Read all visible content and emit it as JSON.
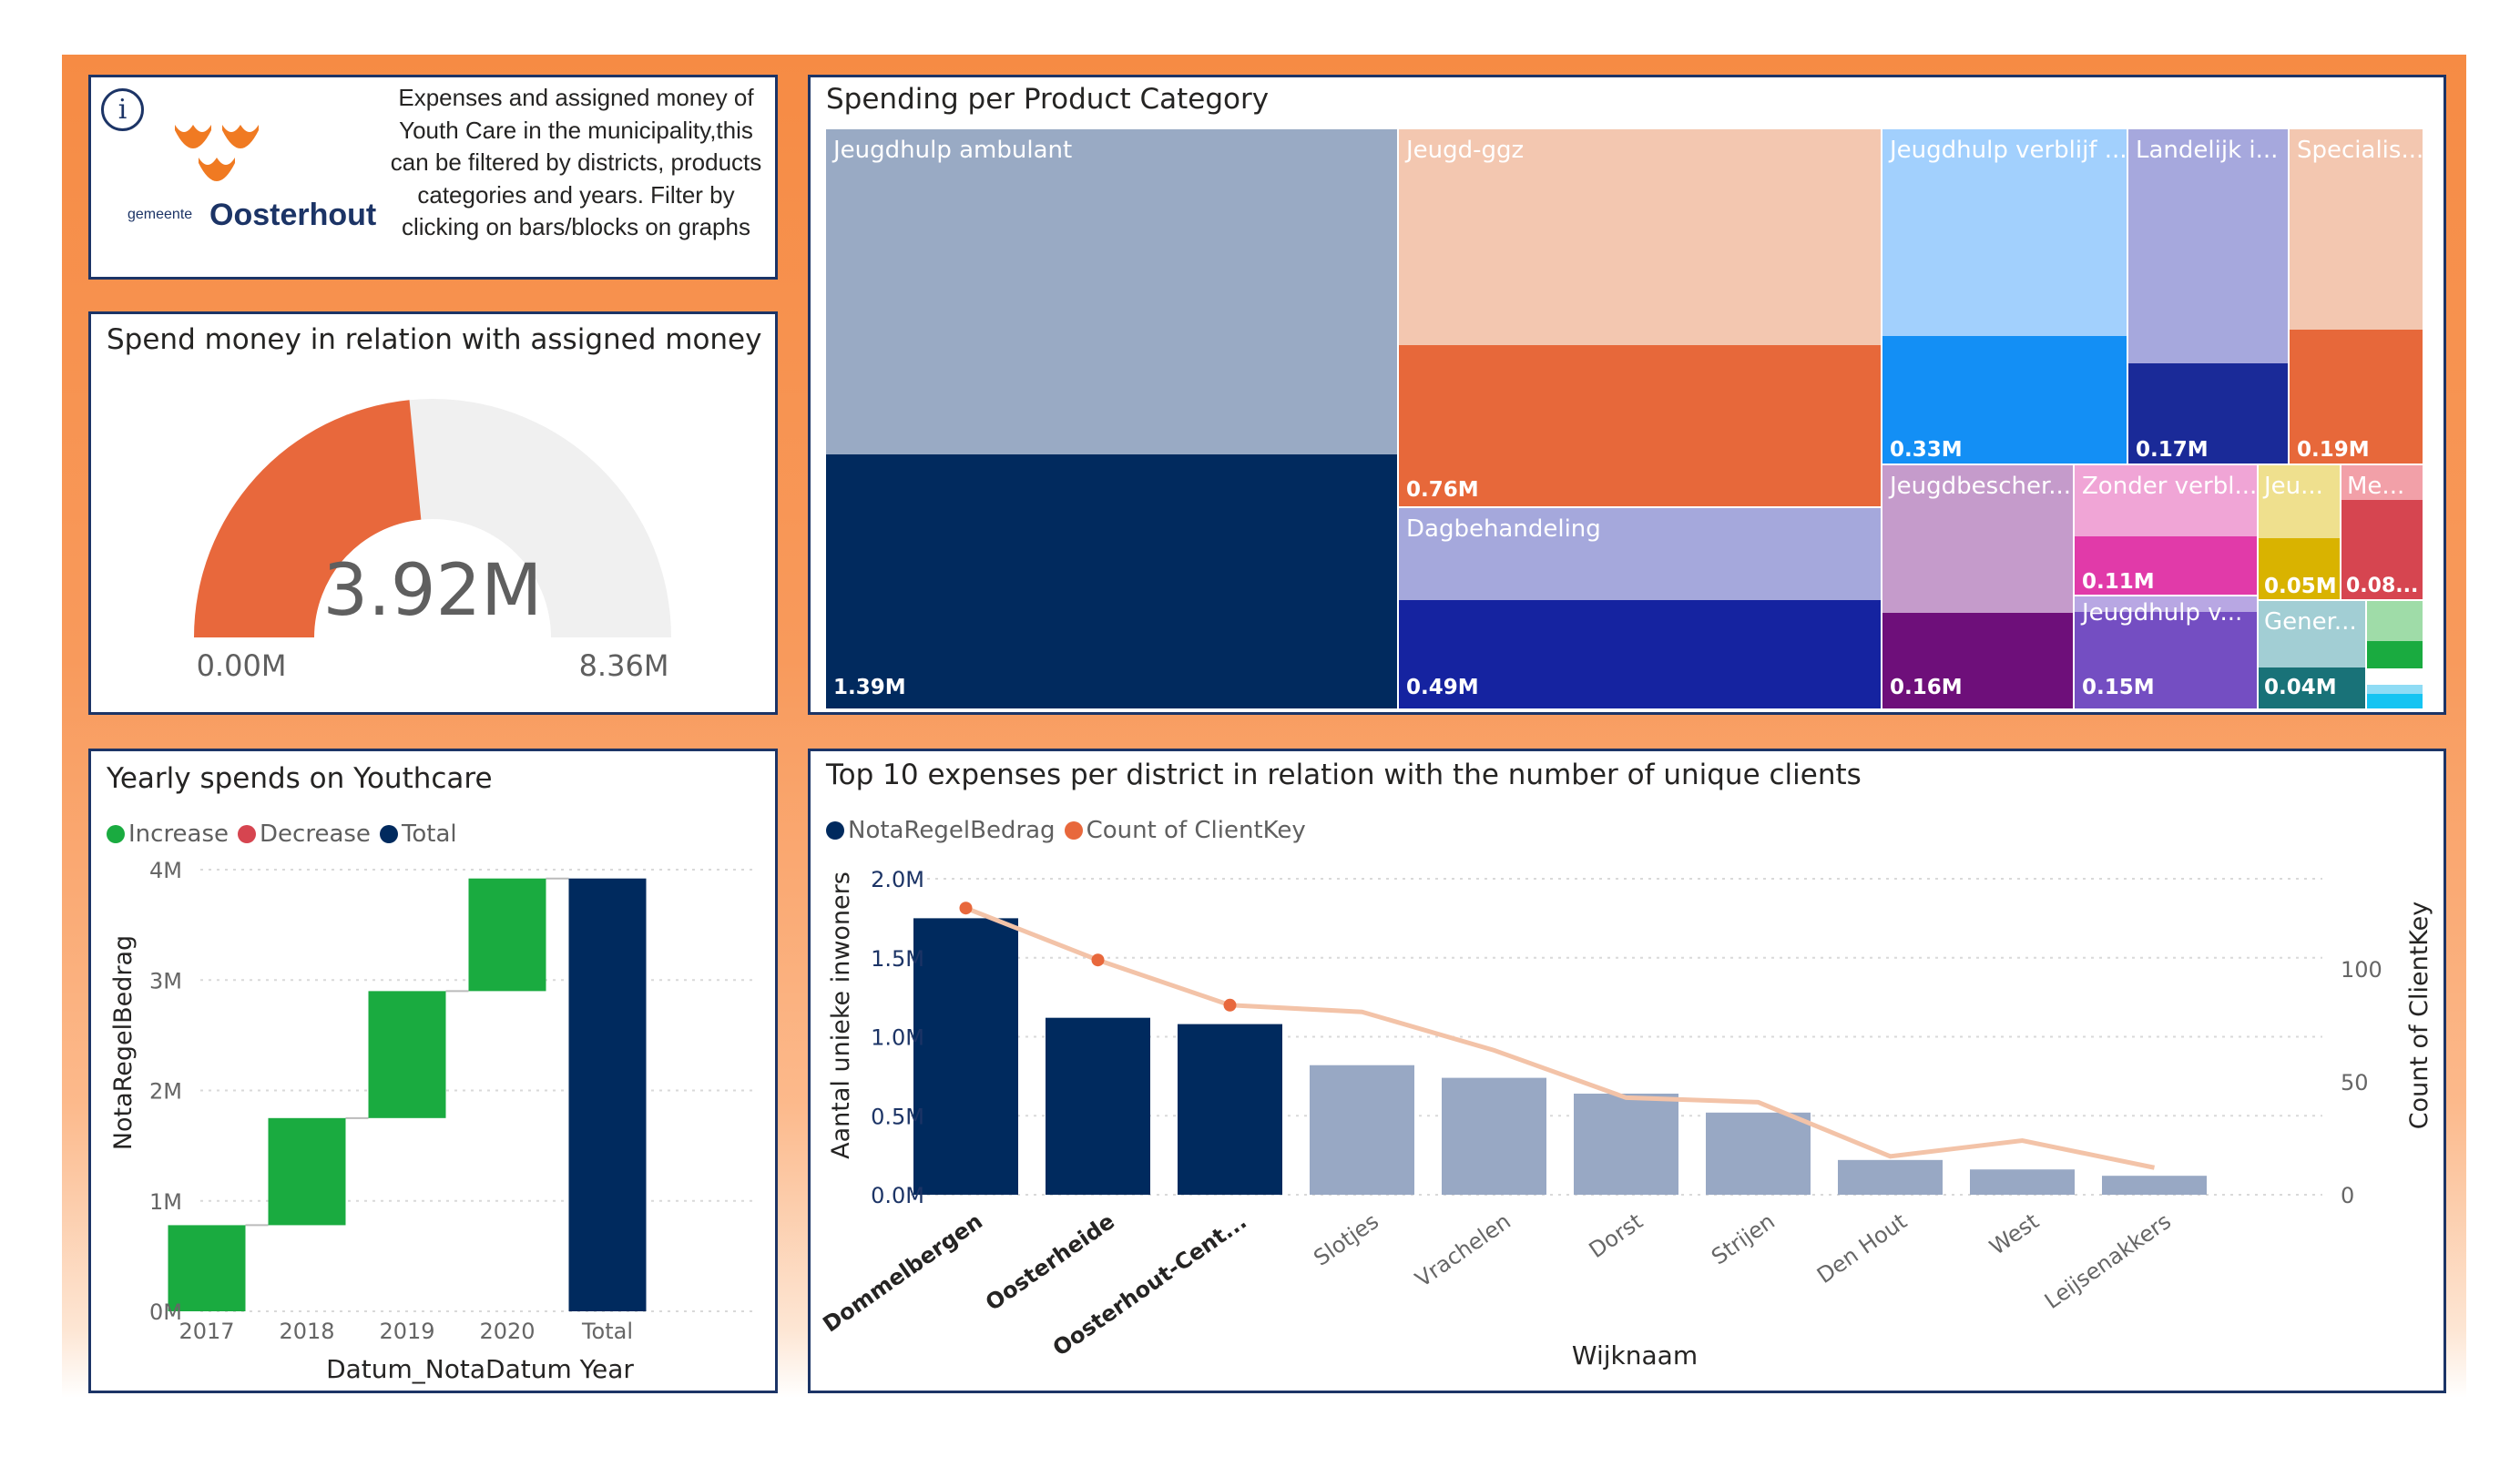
{
  "info": {
    "icon": "info-icon",
    "icon_glyph": "i",
    "logo_small": "gemeente",
    "logo_name": "Oosterhout",
    "description": "Expenses and assigned money of Youth Care in the municipality,this can be filtered by districts, products categories and years. Filter by clicking on bars/blocks on graphs"
  },
  "gauge": {
    "title": "Spend money in relation with assigned money",
    "value_label": "3.92M",
    "min_label": "0.00M",
    "max_label": "8.36M",
    "fill_fraction": 0.469,
    "fill_color": "#e8683c",
    "track_color": "#f0f0f0"
  },
  "treemap": {
    "title": "Spending per Product Category",
    "tiles": [
      {
        "label": "Jeugdhulp ambulant",
        "value": "1.39M"
      },
      {
        "label": "Jeugd-ggz",
        "value": "0.76M"
      },
      {
        "label": "Dagbehandeling",
        "value": "0.49M"
      },
      {
        "label": "Jeugdhulp verblijf ...",
        "value": "0.33M"
      },
      {
        "label": "Landelijk i...",
        "value": "0.17M"
      },
      {
        "label": "Specialis...",
        "value": "0.19M"
      },
      {
        "label": "Jeugdbescher...",
        "value": "0.16M"
      },
      {
        "label": "Zonder verbl...",
        "value": "0.11M"
      },
      {
        "label": "Jeugdhulp v...",
        "value": "0.15M"
      },
      {
        "label": "Jeu...",
        "value": "0.05M"
      },
      {
        "label": "Me...",
        "value": "0.08..."
      },
      {
        "label": "Gener...",
        "value": "0.04M"
      }
    ]
  },
  "waterfall": {
    "title": "Yearly spends on Youthcare",
    "legend": [
      {
        "label": "Increase",
        "color": "#1aab40"
      },
      {
        "label": "Decrease",
        "color": "#d64550"
      },
      {
        "label": "Total",
        "color": "#002a5e"
      }
    ],
    "ylabel": "NotaRegelBedrag",
    "xlabel": "Datum_NotaDatum Year"
  },
  "combo": {
    "title": "Top 10 expenses per district in relation with the number of unique clients",
    "legend": [
      {
        "label": "NotaRegelBedrag",
        "color": "#002a5e"
      },
      {
        "label": "Count of ClientKey",
        "color": "#e8683c"
      }
    ],
    "ylabel": "Aantal unieke inwoners",
    "y2label": "Count of ClientKey",
    "xlabel": "Wijknaam"
  },
  "chart_data": [
    {
      "type": "gauge",
      "title": "Spend money in relation with assigned money",
      "value": 3.92,
      "min": 0,
      "max": 8.36,
      "unit": "M"
    },
    {
      "type": "treemap",
      "title": "Spending per Product Category",
      "categories": [
        "Jeugdhulp ambulant",
        "Jeugd-ggz",
        "Dagbehandeling",
        "Jeugdhulp verblijf ...",
        "Landelijk i...",
        "Specialis...",
        "Jeugdbescher...",
        "Zonder verbl...",
        "Jeugdhulp v...",
        "Jeu...",
        "Me...",
        "Gener..."
      ],
      "values": [
        1.39,
        0.76,
        0.49,
        0.33,
        0.17,
        0.19,
        0.16,
        0.11,
        0.15,
        0.05,
        0.08,
        0.04
      ],
      "unit": "M"
    },
    {
      "type": "bar",
      "subtype": "waterfall",
      "title": "Yearly spends on Youthcare",
      "categories": [
        "2017",
        "2018",
        "2019",
        "2020",
        "Total"
      ],
      "series": [
        {
          "name": "Increase",
          "values": [
            0.78,
            0.97,
            1.15,
            1.02,
            null
          ]
        },
        {
          "name": "Total",
          "values": [
            null,
            null,
            null,
            null,
            3.92
          ]
        }
      ],
      "unit": "M",
      "xlabel": "Datum_NotaDatum Year",
      "ylabel": "NotaRegelBedrag",
      "ylim": [
        0,
        4
      ],
      "yticks": [
        "0M",
        "1M",
        "2M",
        "3M",
        "4M"
      ],
      "grid": true,
      "legend": "top-left"
    },
    {
      "type": "bar",
      "subtype": "bar-line-combo",
      "title": "Top 10 expenses per district in relation with the number of unique clients",
      "categories": [
        "Dommelbergen",
        "Oosterheide",
        "Oosterhout-Cent...",
        "Slotjes",
        "Vrachelen",
        "Dorst",
        "Strijen",
        "Den Hout",
        "West",
        "Leijsenakkers"
      ],
      "highlighted": [
        true,
        true,
        true,
        false,
        false,
        false,
        false,
        false,
        false,
        false
      ],
      "series": [
        {
          "name": "NotaRegelBedrag",
          "axis": "left",
          "unit": "M",
          "values": [
            1.75,
            1.12,
            1.08,
            0.82,
            0.74,
            0.64,
            0.52,
            0.22,
            0.16,
            0.12
          ]
        },
        {
          "name": "Count of ClientKey",
          "axis": "right",
          "values": [
            127,
            104,
            84,
            81,
            64,
            43,
            41,
            17,
            24,
            12
          ]
        }
      ],
      "xlabel": "Wijknaam",
      "ylabel": "Aantal unieke inwoners",
      "y2label": "Count of ClientKey",
      "ylim": [
        0,
        2.0
      ],
      "y2lim": [
        0,
        140
      ],
      "yticks": [
        "0.0M",
        "0.5M",
        "1.0M",
        "1.5M",
        "2.0M"
      ],
      "y2ticks": [
        "0",
        "50",
        "100"
      ],
      "grid": true,
      "legend": "top-left"
    }
  ]
}
